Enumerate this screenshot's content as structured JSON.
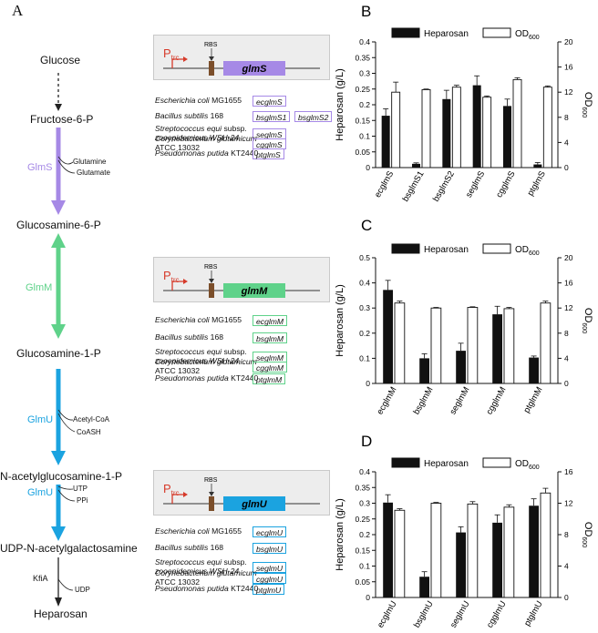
{
  "panels": {
    "a": "A",
    "b": "B",
    "c": "C",
    "d": "D"
  },
  "pathway": {
    "metabolites": [
      "Glucose",
      "Fructose-6-P",
      "Glucosamine-6-P",
      "Glucosamine-1-P",
      "N-acetylglucosamine-1-P",
      "UDP-N-acetylgalactosamine",
      "Heparosan"
    ],
    "enzymes": [
      "GlmS",
      "GlmM",
      "GlmU",
      "GlmU",
      "KfiA"
    ],
    "cofactors": {
      "glms": [
        "Glutamine",
        "Glutamate"
      ],
      "glmu1": [
        "Acetyl-CoA",
        "CoASH"
      ],
      "glmu2": [
        "UTP",
        "PPi"
      ],
      "kfia": [
        "UDP"
      ]
    },
    "colors": {
      "glms": "#a689e6",
      "glmm": "#5fd28a",
      "glmu": "#1ba3e0",
      "dark": "#222222"
    }
  },
  "constructs": [
    {
      "promoter_main": "P",
      "promoter_sub": "trc",
      "rbs": "RBS",
      "gene": "glmS",
      "color": "#a689e6",
      "organisms": [
        {
          "name": "Escherichia coli",
          "suffix": " MG1655",
          "tags": [
            "ecglmS"
          ]
        },
        {
          "name": "Bacillus subtilis",
          "suffix": " 168",
          "tags": [
            "bsglmS1",
            "bsglmS2"
          ]
        },
        {
          "name": "Streptococcus equi",
          "suffix": " subsp.",
          "line2": " zooepidemicus WSH-24",
          "tags": [
            "seglmS"
          ]
        },
        {
          "name": "Corynebacterium glutamicum",
          "suffix": "",
          "line2": "ATCC 13032",
          "tags": [
            "cgglmS"
          ]
        },
        {
          "name": "Pseudomonas putida",
          "suffix": " KT2440",
          "tags": [
            "ptglmS"
          ]
        }
      ]
    },
    {
      "promoter_main": "P",
      "promoter_sub": "trc",
      "rbs": "RBS",
      "gene": "glmM",
      "color": "#5fd28a",
      "organisms": [
        {
          "name": "Escherichia coli",
          "suffix": " MG1655",
          "tags": [
            "ecglmM"
          ]
        },
        {
          "name": "Bacillus subtilis",
          "suffix": " 168",
          "tags": [
            "bsglmM"
          ]
        },
        {
          "name": "Streptococcus equi",
          "suffix": " subsp.",
          "line2": " zooepidemicus WSH-24",
          "tags": [
            "seglmM"
          ]
        },
        {
          "name": "Corynebacterium glutamicum",
          "suffix": "",
          "line2": "ATCC 13032",
          "tags": [
            "cgglmM"
          ]
        },
        {
          "name": "Pseudomonas putida",
          "suffix": " KT2440",
          "tags": [
            "ptglmM"
          ]
        }
      ]
    },
    {
      "promoter_main": "P",
      "promoter_sub": "trc",
      "rbs": "RBS",
      "gene": "glmU",
      "color": "#1ba3e0",
      "organisms": [
        {
          "name": "Escherichia coli",
          "suffix": " MG1655",
          "tags": [
            "ecglmU"
          ]
        },
        {
          "name": "Bacillus subtilis",
          "suffix": " 168",
          "tags": [
            "bsglmU"
          ]
        },
        {
          "name": "Streptococcus equi",
          "suffix": " subsp.",
          "line2": " zooepidemicus WSH-24",
          "tags": [
            "seglmU"
          ]
        },
        {
          "name": "Corynebacterium glutamicum",
          "suffix": "",
          "line2": "ATCC 13032",
          "tags": [
            "cgglmU"
          ]
        },
        {
          "name": "Pseudomonas putida",
          "suffix": " KT2440",
          "tags": [
            "ptglmU"
          ]
        }
      ]
    }
  ],
  "chart_data": [
    {
      "panel": "B",
      "type": "bar",
      "categories": [
        "ecglmS",
        "bsglmS1",
        "bsglmS2",
        "seglmS",
        "cgglmS",
        "ptglmS"
      ],
      "series": [
        {
          "name": "Heparosan",
          "axis": "left",
          "color": "#111111",
          "values": [
            0.165,
            0.012,
            0.218,
            0.262,
            0.196,
            0.01
          ],
          "errors": [
            0.022,
            0.003,
            0.028,
            0.03,
            0.022,
            0.006
          ]
        },
        {
          "name": "OD",
          "name_sub": "600",
          "axis": "right",
          "color": "#ffffff",
          "values": [
            12.0,
            12.4,
            12.8,
            11.2,
            14.0,
            12.8
          ],
          "errors": [
            1.6,
            0.1,
            0.3,
            0.2,
            0.3,
            0.2
          ]
        }
      ],
      "ylabel": "Heparosan (g/L)",
      "ylabel2_main": "OD",
      "ylabel2_sub": "600",
      "ylim": [
        0,
        0.4
      ],
      "y2lim": [
        0,
        20
      ],
      "yticks": [
        "0",
        "0.05",
        "0.1",
        "0.15",
        "0.2",
        "0.25",
        "0.3",
        "0.35",
        "0.4"
      ],
      "y2ticks": [
        "0",
        "4",
        "8",
        "12",
        "16",
        "20"
      ],
      "legend": "top"
    },
    {
      "panel": "C",
      "type": "bar",
      "categories": [
        "ecglmM",
        "bsglmM",
        "seglmM",
        "cgglmM",
        "ptglmM"
      ],
      "series": [
        {
          "name": "Heparosan",
          "axis": "left",
          "color": "#111111",
          "values": [
            0.372,
            0.1,
            0.13,
            0.275,
            0.103
          ],
          "errors": [
            0.038,
            0.018,
            0.03,
            0.032,
            0.006
          ]
        },
        {
          "name": "OD",
          "name_sub": "600",
          "axis": "right",
          "color": "#ffffff",
          "values": [
            12.8,
            12.0,
            12.1,
            11.9,
            12.8
          ],
          "errors": [
            0.3,
            0.1,
            0.1,
            0.2,
            0.3
          ]
        }
      ],
      "ylabel": "Heparosan (g/L)",
      "ylabel2_main": "OD",
      "ylabel2_sub": "600",
      "ylim": [
        0,
        0.5
      ],
      "y2lim": [
        0,
        20
      ],
      "yticks": [
        "0",
        "0.1",
        "0.2",
        "0.3",
        "0.4",
        "0.5"
      ],
      "y2ticks": [
        "0",
        "4",
        "8",
        "12",
        "16",
        "20"
      ],
      "legend": "top"
    },
    {
      "panel": "D",
      "type": "bar",
      "categories": [
        "ecglmU",
        "bsglmU",
        "seglmU",
        "cgglmU",
        "ptglmU"
      ],
      "series": [
        {
          "name": "Heparosan",
          "axis": "left",
          "color": "#111111",
          "values": [
            0.302,
            0.066,
            0.207,
            0.238,
            0.292
          ],
          "errors": [
            0.025,
            0.016,
            0.018,
            0.025,
            0.022
          ]
        },
        {
          "name": "OD",
          "name_sub": "600",
          "axis": "right",
          "color": "#ffffff",
          "values": [
            11.1,
            12.0,
            11.9,
            11.5,
            13.3
          ],
          "errors": [
            0.2,
            0.1,
            0.3,
            0.3,
            0.6
          ]
        }
      ],
      "ylabel": "Heparosan (g/L)",
      "ylabel2_main": "OD",
      "ylabel2_sub": "600",
      "ylim": [
        0,
        0.4
      ],
      "y2lim": [
        0,
        16
      ],
      "yticks": [
        "0",
        "0.05",
        "0.1",
        "0.15",
        "0.2",
        "0.25",
        "0.3",
        "0.35",
        "0.4"
      ],
      "y2ticks": [
        "0",
        "4",
        "8",
        "12",
        "16"
      ],
      "legend": "top"
    }
  ]
}
